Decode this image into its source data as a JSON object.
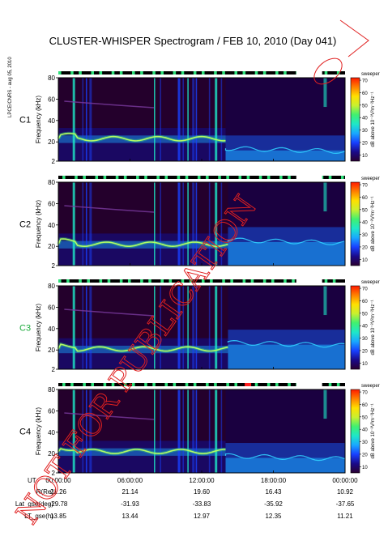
{
  "title": "CLUSTER-WHISPER Spectrogram / FEB 10, 2010 (Day 041)",
  "side_label": "LPCE/CNRS - aug 05, 2010",
  "watermark": "NOT FOR PUBLICATION",
  "colorbar": {
    "header": "sweeper",
    "label": "dB above 10⁻⁸V²m⁻²Hz⁻¹",
    "ticks": [
      "10",
      "20",
      "30",
      "40",
      "50",
      "60",
      "70"
    ],
    "range": [
      5,
      72
    ],
    "colors": [
      "#2a0030",
      "#1a0a8a",
      "#1840ff",
      "#19a8ff",
      "#1ee8c8",
      "#40f070",
      "#c8f030",
      "#ffe000",
      "#ff8000",
      "#ff1a00"
    ]
  },
  "chart_data": {
    "type": "heatmap",
    "x_axis": {
      "label": "UT",
      "ticks": [
        "00:00:00",
        "06:00:00",
        "12:00:00",
        "18:00:00",
        "00:00:00"
      ],
      "range_hours": [
        0,
        24
      ]
    },
    "y_axis": {
      "label": "Frequency (kHz)",
      "ticks": [
        "2",
        "20",
        "40",
        "60",
        "80"
      ],
      "range_khz": [
        2,
        80
      ]
    },
    "panels": [
      {
        "name": "C1",
        "name_color": "#000000",
        "plasmapause_hour": 14.0,
        "line_khz_before": 23,
        "line_khz_after": 14
      },
      {
        "name": "C2",
        "name_color": "#000000",
        "plasmapause_hour": 14.2,
        "line_khz_before": 22,
        "line_khz_after": 26
      },
      {
        "name": "C3",
        "name_color": "#1aaa3a",
        "plasmapause_hour": 14.2,
        "line_khz_before": 21,
        "line_khz_after": 27
      },
      {
        "name": "C4",
        "name_color": "#000000",
        "plasmapause_hour": 14.0,
        "line_khz_before": 22,
        "line_khz_after": 18
      }
    ],
    "orbit_table": {
      "rows": [
        {
          "label": "R(Re)",
          "values": [
            "21.26",
            "21.14",
            "19.60",
            "16.43",
            "10.92"
          ]
        },
        {
          "label": "Lat_gse(deg)",
          "values": [
            "-29.78",
            "-31.93",
            "-33.83",
            "-35.92",
            "-37.65"
          ]
        },
        {
          "label": "LT_gse(h)",
          "values": [
            "13.85",
            "13.44",
            "12.97",
            "12.35",
            "11.21"
          ]
        }
      ]
    }
  }
}
